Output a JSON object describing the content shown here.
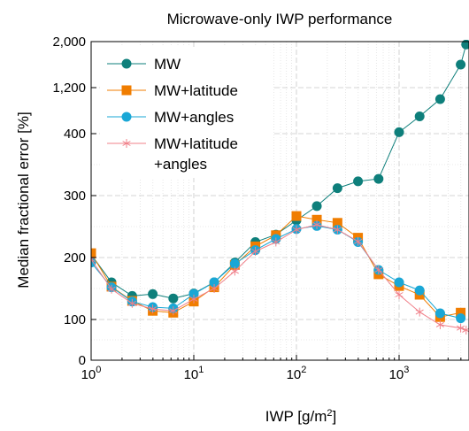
{
  "chart_data": {
    "type": "line",
    "title": "Microwave-only IWP performance",
    "xlabel": "IWP [g/m²]",
    "xlabel_main": "IWP [g/m",
    "xlabel_sup": "2",
    "xlabel_end": "]",
    "ylabel": "Median fractional error [%]",
    "x_scale": "log",
    "xlim": [
      1,
      4500
    ],
    "x_ticks": [
      {
        "value": 1,
        "base": "10",
        "exp": "0"
      },
      {
        "value": 10,
        "base": "10",
        "exp": "1"
      },
      {
        "value": 100,
        "base": "10",
        "exp": "2"
      },
      {
        "value": 1000,
        "base": "10",
        "exp": "3"
      }
    ],
    "y_scale": "piecewise (non-linear)",
    "y_ticks": [
      {
        "value": 0,
        "label": "0"
      },
      {
        "value": 100,
        "label": "100"
      },
      {
        "value": 200,
        "label": "200"
      },
      {
        "value": 300,
        "label": "300"
      },
      {
        "value": 400,
        "label": "400"
      },
      {
        "value": 1200,
        "label": "1,200"
      },
      {
        "value": 2000,
        "label": "2,000"
      }
    ],
    "grid": true,
    "legend_position": "top-left",
    "series": [
      {
        "name": "MW",
        "color": "#0e7f7b",
        "marker": "circle-filled",
        "x": [
          1,
          1.58,
          2.51,
          3.98,
          6.31,
          10,
          15.8,
          25.1,
          39.8,
          63.1,
          100,
          158,
          251,
          398,
          631,
          1000,
          1585,
          2512,
          3981,
          4500
        ],
        "y": [
          205,
          160,
          138,
          141,
          134,
          142,
          160,
          192,
          225,
          237,
          260,
          283,
          312,
          323,
          327,
          425,
          700,
          1000,
          1600,
          1950
        ]
      },
      {
        "name": "MW+latitude",
        "color": "#f07d00",
        "marker": "square-filled",
        "x": [
          1,
          1.58,
          2.51,
          3.98,
          6.31,
          10,
          15.8,
          25.1,
          39.8,
          63.1,
          100,
          158,
          251,
          398,
          631,
          1000,
          1585,
          2512,
          3981
        ],
        "y": [
          207,
          153,
          130,
          114,
          111,
          129,
          152,
          188,
          218,
          236,
          267,
          261,
          256,
          232,
          173,
          154,
          140,
          104,
          111
        ]
      },
      {
        "name": "MW+angles",
        "color": "#1aa7d6",
        "marker": "circle-filled",
        "x": [
          1,
          1.58,
          2.51,
          3.98,
          6.31,
          10,
          15.8,
          25.1,
          39.8,
          63.1,
          100,
          158,
          251,
          398,
          631,
          1000,
          1585,
          2512,
          3981
        ],
        "y": [
          192,
          152,
          129,
          120,
          118,
          141,
          160,
          190,
          212,
          230,
          246,
          251,
          245,
          225,
          180,
          160,
          147,
          110,
          102
        ]
      },
      {
        "name": "MW+latitude\n+angles",
        "name_lines": [
          "MW+latitude",
          "+angles"
        ],
        "color": "#f0808a",
        "marker": "asterisk",
        "x": [
          1,
          1.58,
          2.51,
          3.98,
          6.31,
          10,
          15.8,
          25.1,
          39.8,
          63.1,
          100,
          158,
          251,
          398,
          631,
          1000,
          1585,
          2512,
          3981,
          4500
        ],
        "y": [
          197,
          149,
          126,
          117,
          114,
          133,
          150,
          178,
          210,
          225,
          245,
          253,
          245,
          226,
          180,
          140,
          112,
          87,
          79,
          74
        ]
      }
    ]
  }
}
